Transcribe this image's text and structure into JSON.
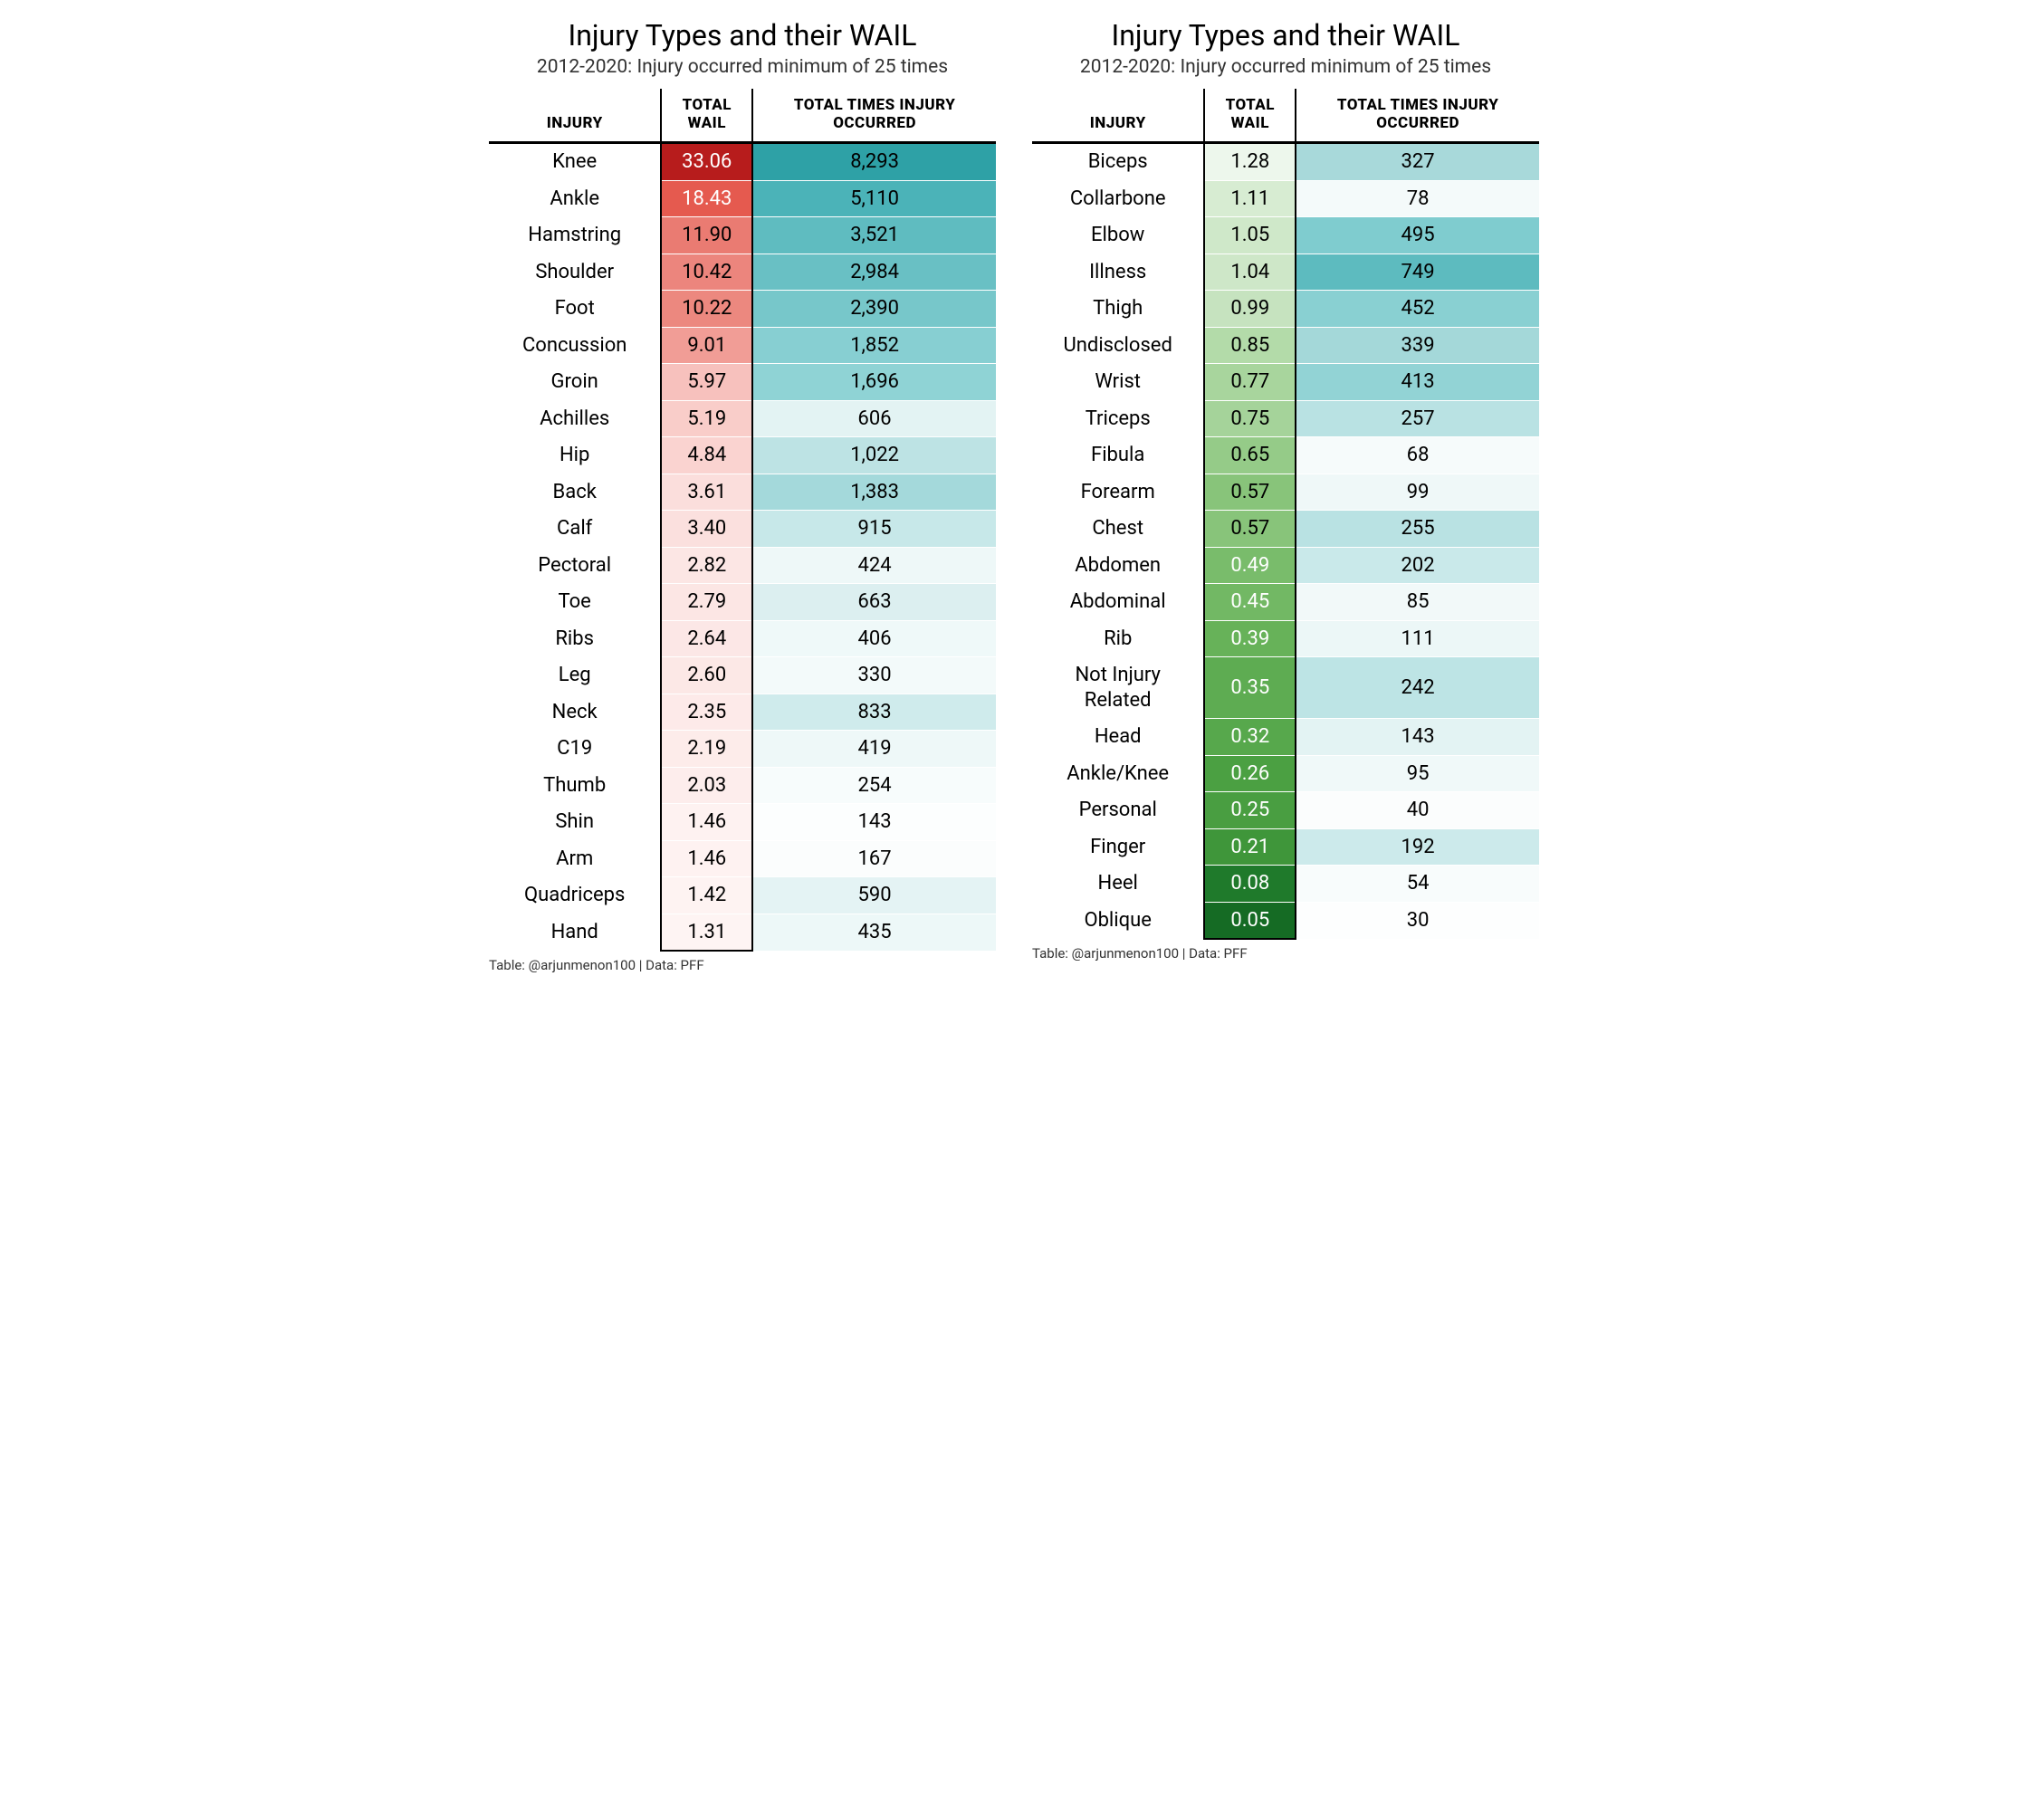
{
  "title": "Injury Types and their WAIL",
  "subtitle": "2012-2020: Injury occurred minimum of 25 times",
  "columns": {
    "injury": "INJURY",
    "wail": "TOTAL WAIL",
    "occ": "TOTAL TIMES INJURY OCCURRED"
  },
  "footer": "Table: @arjunmenon100 | Data: PFF",
  "left": {
    "rows": [
      {
        "injury": "Knee",
        "wail": "33.06",
        "occ": "8,293",
        "wail_bg": "#b71c1c",
        "wail_fg": "#ffffff",
        "occ_bg": "#2ea1a6"
      },
      {
        "injury": "Ankle",
        "wail": "18.43",
        "occ": "5,110",
        "wail_bg": "#e55a4f",
        "wail_fg": "#ffffff",
        "occ_bg": "#4bb3b8"
      },
      {
        "injury": "Hamstring",
        "wail": "11.90",
        "occ": "3,521",
        "wail_bg": "#ea7b72",
        "wail_fg": "#000000",
        "occ_bg": "#5fbcc0"
      },
      {
        "injury": "Shoulder",
        "wail": "10.42",
        "occ": "2,984",
        "wail_bg": "#ec857d",
        "wail_fg": "#000000",
        "occ_bg": "#69c0c4"
      },
      {
        "injury": "Foot",
        "wail": "10.22",
        "occ": "2,390",
        "wail_bg": "#ec887f",
        "wail_fg": "#000000",
        "occ_bg": "#77c7ca"
      },
      {
        "injury": "Concussion",
        "wail": "9.01",
        "occ": "1,852",
        "wail_bg": "#f19d96",
        "wail_fg": "#000000",
        "occ_bg": "#87cfd2"
      },
      {
        "injury": "Groin",
        "wail": "5.97",
        "occ": "1,696",
        "wail_bg": "#f7c1bd",
        "wail_fg": "#000000",
        "occ_bg": "#8fd3d5"
      },
      {
        "injury": "Achilles",
        "wail": "5.19",
        "occ": "606",
        "wail_bg": "#f9cdc9",
        "wail_fg": "#000000",
        "occ_bg": "#e3f3f3"
      },
      {
        "injury": "Hip",
        "wail": "4.84",
        "occ": "1,022",
        "wail_bg": "#fad3d0",
        "wail_fg": "#000000",
        "occ_bg": "#bde3e4"
      },
      {
        "injury": "Back",
        "wail": "3.61",
        "occ": "1,383",
        "wail_bg": "#fbdedc",
        "wail_fg": "#000000",
        "occ_bg": "#a4d9db"
      },
      {
        "injury": "Calf",
        "wail": "3.40",
        "occ": "915",
        "wail_bg": "#fbe0de",
        "wail_fg": "#000000",
        "occ_bg": "#c7e8e9"
      },
      {
        "injury": "Pectoral",
        "wail": "2.82",
        "occ": "424",
        "wail_bg": "#fce6e4",
        "wail_fg": "#000000",
        "occ_bg": "#eef8f8"
      },
      {
        "injury": "Toe",
        "wail": "2.79",
        "occ": "663",
        "wail_bg": "#fce6e4",
        "wail_fg": "#000000",
        "occ_bg": "#dceff0"
      },
      {
        "injury": "Ribs",
        "wail": "2.64",
        "occ": "406",
        "wail_bg": "#fce7e6",
        "wail_fg": "#000000",
        "occ_bg": "#eff9f9"
      },
      {
        "injury": "Leg",
        "wail": "2.60",
        "occ": "330",
        "wail_bg": "#fce8e6",
        "wail_fg": "#000000",
        "occ_bg": "#f3fafa"
      },
      {
        "injury": "Neck",
        "wail": "2.35",
        "occ": "833",
        "wail_bg": "#fdeae9",
        "wail_fg": "#000000",
        "occ_bg": "#cfebec"
      },
      {
        "injury": "C19",
        "wail": "2.19",
        "occ": "419",
        "wail_bg": "#fdecea",
        "wail_fg": "#000000",
        "occ_bg": "#eef8f8"
      },
      {
        "injury": "Thumb",
        "wail": "2.03",
        "occ": "254",
        "wail_bg": "#fdedec",
        "wail_fg": "#000000",
        "occ_bg": "#f7fcfc"
      },
      {
        "injury": "Shin",
        "wail": "1.46",
        "occ": "143",
        "wail_bg": "#fef2f1",
        "wail_fg": "#000000",
        "occ_bg": "#fcfefe"
      },
      {
        "injury": "Arm",
        "wail": "1.46",
        "occ": "167",
        "wail_bg": "#fef2f1",
        "wail_fg": "#000000",
        "occ_bg": "#fbfdfd"
      },
      {
        "injury": "Quadriceps",
        "wail": "1.42",
        "occ": "590",
        "wail_bg": "#fef3f2",
        "wail_fg": "#000000",
        "occ_bg": "#e4f3f4"
      },
      {
        "injury": "Hand",
        "wail": "1.31",
        "occ": "435",
        "wail_bg": "#fef4f3",
        "wail_fg": "#000000",
        "occ_bg": "#edf8f8"
      }
    ]
  },
  "right": {
    "rows": [
      {
        "injury": "Biceps",
        "wail": "1.28",
        "occ": "327",
        "wail_bg": "#edf7ec",
        "wail_fg": "#000000",
        "occ_bg": "#a8d9da"
      },
      {
        "injury": "Collarbone",
        "wail": "1.11",
        "occ": "78",
        "wail_bg": "#d7ecd2",
        "wail_fg": "#000000",
        "occ_bg": "#f4fafa"
      },
      {
        "injury": "Elbow",
        "wail": "1.05",
        "occ": "495",
        "wail_bg": "#cfe8c9",
        "wail_fg": "#000000",
        "occ_bg": "#7fcccf"
      },
      {
        "injury": "Illness",
        "wail": "1.04",
        "occ": "749",
        "wail_bg": "#cee7c8",
        "wail_fg": "#000000",
        "occ_bg": "#5dbbbf"
      },
      {
        "injury": "Thigh",
        "wail": "0.99",
        "occ": "452",
        "wail_bg": "#c6e3bf",
        "wail_fg": "#000000",
        "occ_bg": "#89d0d2"
      },
      {
        "injury": "Undisclosed",
        "wail": "0.85",
        "occ": "339",
        "wail_bg": "#b3dba9",
        "wail_fg": "#000000",
        "occ_bg": "#a4d8d9"
      },
      {
        "injury": "Wrist",
        "wail": "0.77",
        "occ": "413",
        "wail_bg": "#a8d59d",
        "wail_fg": "#000000",
        "occ_bg": "#92d3d5"
      },
      {
        "injury": "Triceps",
        "wail": "0.75",
        "occ": "257",
        "wail_bg": "#a5d39a",
        "wail_fg": "#000000",
        "occ_bg": "#b9e2e3"
      },
      {
        "injury": "Fibula",
        "wail": "0.65",
        "occ": "68",
        "wail_bg": "#95cb88",
        "wail_fg": "#000000",
        "occ_bg": "#f6fbfb"
      },
      {
        "injury": "Forearm",
        "wail": "0.57",
        "occ": "99",
        "wail_bg": "#88c47a",
        "wail_fg": "#000000",
        "occ_bg": "#eff8f8"
      },
      {
        "injury": "Chest",
        "wail": "0.57",
        "occ": "255",
        "wail_bg": "#88c47a",
        "wail_fg": "#000000",
        "occ_bg": "#b9e2e3"
      },
      {
        "injury": "Abdomen",
        "wail": "0.49",
        "occ": "202",
        "wail_bg": "#79bc6b",
        "wail_fg": "#ffffff",
        "occ_bg": "#c9e9ea"
      },
      {
        "injury": "Abdominal",
        "wail": "0.45",
        "occ": "85",
        "wail_bg": "#72b864",
        "wail_fg": "#ffffff",
        "occ_bg": "#f2f9f9"
      },
      {
        "injury": "Rib",
        "wail": "0.39",
        "occ": "111",
        "wail_bg": "#67b259",
        "wail_fg": "#ffffff",
        "occ_bg": "#ecf7f7"
      },
      {
        "injury": "Not Injury Related",
        "wail": "0.35",
        "occ": "242",
        "wail_bg": "#5eac52",
        "wail_fg": "#ffffff",
        "occ_bg": "#bde4e5"
      },
      {
        "injury": "Head",
        "wail": "0.32",
        "occ": "143",
        "wail_bg": "#57a84c",
        "wail_fg": "#ffffff",
        "occ_bg": "#e3f3f3"
      },
      {
        "injury": "Ankle/Knee",
        "wail": "0.26",
        "occ": "95",
        "wail_bg": "#4ba042",
        "wail_fg": "#ffffff",
        "occ_bg": "#f0f9f9"
      },
      {
        "injury": "Personal",
        "wail": "0.25",
        "occ": "40",
        "wail_bg": "#499e41",
        "wail_fg": "#ffffff",
        "occ_bg": "#fbfdfd"
      },
      {
        "injury": "Finger",
        "wail": "0.21",
        "occ": "192",
        "wail_bg": "#3f963a",
        "wail_fg": "#ffffff",
        "occ_bg": "#cceaeb"
      },
      {
        "injury": "Heel",
        "wail": "0.08",
        "occ": "54",
        "wail_bg": "#1f7a2b",
        "wail_fg": "#ffffff",
        "occ_bg": "#f8fcfc"
      },
      {
        "injury": "Oblique",
        "wail": "0.05",
        "occ": "30",
        "wail_bg": "#156b24",
        "wail_fg": "#ffffff",
        "occ_bg": "#fdfefe"
      }
    ]
  }
}
